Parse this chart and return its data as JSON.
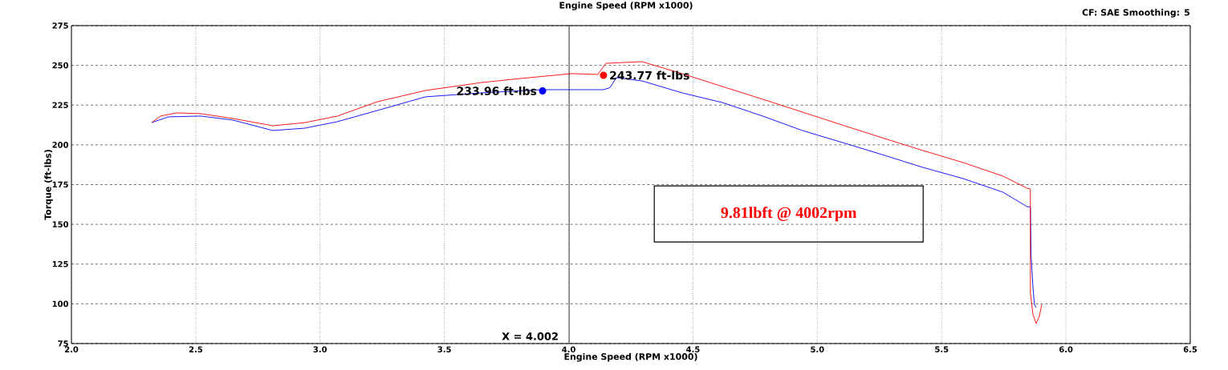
{
  "chart_data": {
    "type": "line",
    "title": "Engine Speed (RPM x1000)",
    "xlabel": "Engine Speed (RPM x1000)",
    "ylabel": "Torque (ft-lbs)",
    "xlim": [
      2.0,
      6.5
    ],
    "ylim": [
      75,
      275
    ],
    "xticks": [
      {
        "value": 2,
        "label": "2.0"
      },
      {
        "value": 2.5,
        "label": "2.5"
      },
      {
        "value": 3,
        "label": "3.0"
      },
      {
        "value": 3.5,
        "label": "3.5"
      },
      {
        "value": 4,
        "label": "4.0"
      },
      {
        "value": 4.5,
        "label": "4.5"
      },
      {
        "value": 5,
        "label": "5.0"
      },
      {
        "value": 5.5,
        "label": "5.5"
      },
      {
        "value": 6,
        "label": "6.0"
      },
      {
        "value": 6.5,
        "label": "6.5"
      }
    ],
    "yticks": [
      75,
      100,
      125,
      150,
      175,
      200,
      225,
      250,
      275
    ],
    "grid": true,
    "series": [
      {
        "color": "#0000ff",
        "x": [
          2.323,
          2.39,
          2.52,
          2.649,
          2.81,
          2.939,
          3.07,
          3.23,
          3.424,
          3.649,
          3.895,
          4.14,
          4.166,
          4.192,
          4.295,
          4.456,
          4.618,
          4.78,
          4.94,
          5.1,
          5.26,
          5.425,
          5.586,
          5.747,
          5.844,
          5.857,
          5.86,
          5.867,
          5.873,
          5.88
        ],
        "values": [
          214,
          217.6,
          218.1,
          215.6,
          209,
          210.5,
          214.6,
          221.6,
          230.2,
          232.7,
          234.7,
          234.7,
          236,
          242.3,
          240.2,
          232.7,
          226.6,
          218.1,
          209,
          201.5,
          193.9,
          185.8,
          178.8,
          170.2,
          161.1,
          161,
          129.9,
          111.3,
          99.7,
          97.7
        ]
      },
      {
        "color": "#ff0000",
        "x": [
          2.323,
          2.358,
          2.423,
          2.52,
          2.649,
          2.81,
          2.939,
          3.07,
          3.23,
          3.424,
          3.649,
          3.81,
          4.011,
          4.117,
          4.15,
          4.295,
          4.456,
          4.618,
          4.78,
          4.94,
          5.1,
          5.26,
          5.425,
          5.586,
          5.747,
          5.844,
          5.857,
          5.857,
          5.867,
          5.88,
          5.893,
          5.903
        ],
        "values": [
          214,
          218.1,
          220.1,
          219.6,
          216.6,
          212,
          214,
          218.1,
          227.1,
          234.2,
          239.2,
          241.8,
          244.8,
          244.3,
          251.3,
          252.3,
          244.8,
          236.7,
          228.7,
          220.6,
          212.5,
          204.5,
          196.4,
          188.9,
          180.3,
          172.7,
          172.2,
          107.2,
          93.6,
          87.6,
          92.1,
          99.7
        ]
      }
    ],
    "ref_lines": [
      {
        "axis": "x",
        "value": 4.002,
        "label": "X = 4.002",
        "color": "#404040"
      }
    ],
    "annotations": [
      {
        "text": "233.96 ft-lbs",
        "x": 3.895,
        "y": 233.96
      },
      {
        "text": "243.77 ft-lbs",
        "x": 4.14,
        "y": 243.77
      },
      "CF: SAE  Smoothing: 5",
      "9.81lbft @ 4002rpm"
    ]
  }
}
